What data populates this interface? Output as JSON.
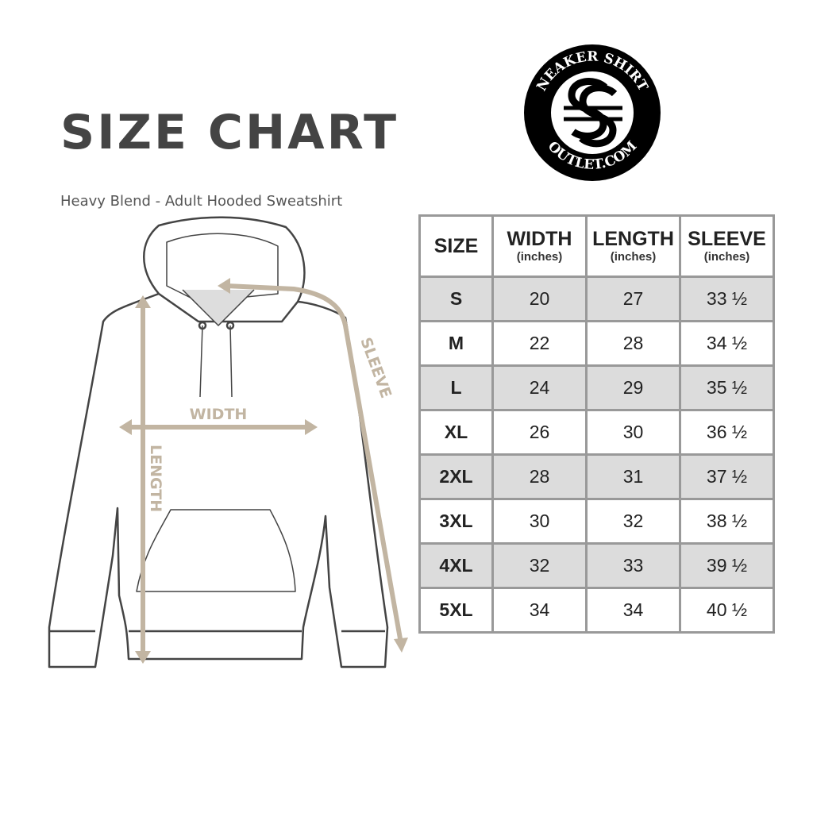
{
  "title": "SIZE CHART",
  "subtitle": "Heavy Blend - Adult Hooded Sweatshirt",
  "logo": {
    "top_text": "SNEAKER SHIRTS",
    "bottom_text": "OUTLET.COM",
    "monogram": "SS"
  },
  "diagram_labels": {
    "width": "WIDTH",
    "length": "LENGTH",
    "sleeve": "SLEEVE"
  },
  "colors": {
    "measure": "#c2b5a2",
    "shade": "#dcdcdc",
    "border": "#999999",
    "title": "#444444"
  },
  "table": {
    "headers": [
      {
        "label": "SIZE",
        "unit": ""
      },
      {
        "label": "WIDTH",
        "unit": "(inches)"
      },
      {
        "label": "LENGTH",
        "unit": "(inches)"
      },
      {
        "label": "SLEEVE",
        "unit": "(inches)"
      }
    ],
    "rows": [
      [
        "S",
        "20",
        "27",
        "33 ½"
      ],
      [
        "M",
        "22",
        "28",
        "34 ½"
      ],
      [
        "L",
        "24",
        "29",
        "35 ½"
      ],
      [
        "XL",
        "26",
        "30",
        "36 ½"
      ],
      [
        "2XL",
        "28",
        "31",
        "37 ½"
      ],
      [
        "3XL",
        "30",
        "32",
        "38 ½"
      ],
      [
        "4XL",
        "32",
        "33",
        "39 ½"
      ],
      [
        "5XL",
        "34",
        "34",
        "40 ½"
      ]
    ]
  }
}
